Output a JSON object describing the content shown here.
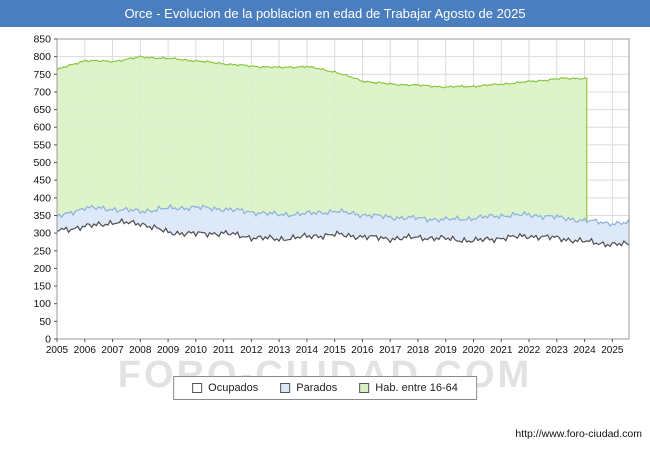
{
  "title": "Orce - Evolucion de la poblacion en edad de Trabajar Agosto de 2025",
  "watermark": "FORO-CIUDAD.COM",
  "footer_url": "http://www.foro-ciudad.com",
  "colors": {
    "titlebar": "#4a7ebf",
    "grid": "#dcdcdc",
    "plot_border": "#9a9a9a",
    "watermark": "#e2e2e2"
  },
  "legend": [
    {
      "label": "Ocupados",
      "fill": "#ffffff",
      "border": "#555555"
    },
    {
      "label": "Parados",
      "fill": "#dde9f8",
      "border": "#555555"
    },
    {
      "label": "Hab. entre 16-64",
      "fill": "#d9f2c4",
      "border": "#555555"
    }
  ],
  "chart_data": {
    "type": "area",
    "title": "Orce - Evolucion de la poblacion en edad de Trabajar Agosto de 2025",
    "xlabel": "",
    "ylabel": "",
    "x_years": [
      2005,
      2006,
      2007,
      2008,
      2009,
      2010,
      2011,
      2012,
      2013,
      2014,
      2015,
      2016,
      2017,
      2018,
      2019,
      2020,
      2021,
      2022,
      2023,
      2024,
      2025
    ],
    "x_max": 2025.6,
    "ylim": [
      0,
      850
    ],
    "ytick_step": 50,
    "grid": true,
    "legend_position": "bottom",
    "series": [
      {
        "name": "Hab. entre 16-64",
        "fill": "#d9f2c4",
        "fill_opacity": 0.9,
        "line": "#8cc63f",
        "jitter": 3,
        "ends_at_year": 2024.08,
        "values": [
          763,
          789,
          786,
          799,
          795,
          788,
          780,
          773,
          769,
          772,
          757,
          731,
          722,
          719,
          714,
          716,
          722,
          729,
          737,
          739,
          null
        ]
      },
      {
        "name": "Parados",
        "fill": "#dde9f8",
        "fill_opacity": 1,
        "line": "#8ab1dd",
        "jitter": 8,
        "values": [
          345,
          372,
          368,
          362,
          370,
          373,
          368,
          360,
          352,
          355,
          362,
          352,
          345,
          342,
          338,
          342,
          350,
          352,
          345,
          335,
          328
        ]
      },
      {
        "name": "Ocupados",
        "fill": "#ffffff",
        "fill_opacity": 1,
        "line": "#4d4d4d",
        "jitter": 9,
        "values": [
          308,
          318,
          330,
          328,
          302,
          298,
          300,
          288,
          283,
          290,
          296,
          290,
          284,
          288,
          284,
          278,
          286,
          292,
          286,
          276,
          268
        ]
      }
    ]
  }
}
